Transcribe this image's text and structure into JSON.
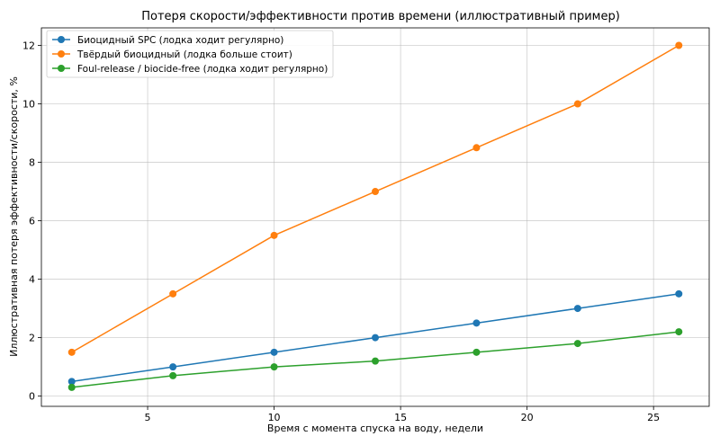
{
  "chart_data": {
    "type": "line",
    "title": "Потеря скорости/эффективности против времени (иллюстративный пример)",
    "xlabel": "Время с момента спуска на воду, недели",
    "ylabel": "Иллюстративная потеря эффективности/скорости, %",
    "x": [
      2,
      6,
      10,
      14,
      18,
      22,
      26
    ],
    "xlim": [
      0.8,
      27.2
    ],
    "ylim": [
      -0.35,
      12.6
    ],
    "xticks": [
      5,
      10,
      15,
      20,
      25
    ],
    "yticks": [
      0,
      2,
      4,
      6,
      8,
      10,
      12
    ],
    "grid": true,
    "legend_position": "top-left",
    "series": [
      {
        "name": "Биоцидный SPC (лодка ходит регулярно)",
        "color": "#1f77b4",
        "values": [
          0.5,
          1.0,
          1.5,
          2.0,
          2.5,
          3.0,
          3.5
        ]
      },
      {
        "name": "Твёрдый биоцидный (лодка больше стоит)",
        "color": "#ff7f0e",
        "values": [
          1.5,
          3.5,
          5.5,
          7.0,
          8.5,
          10.0,
          12.0
        ]
      },
      {
        "name": "Foul-release / biocide-free (лодка ходит регулярно)",
        "color": "#2ca02c",
        "values": [
          0.3,
          0.7,
          1.0,
          1.2,
          1.5,
          1.8,
          2.2
        ]
      }
    ]
  }
}
